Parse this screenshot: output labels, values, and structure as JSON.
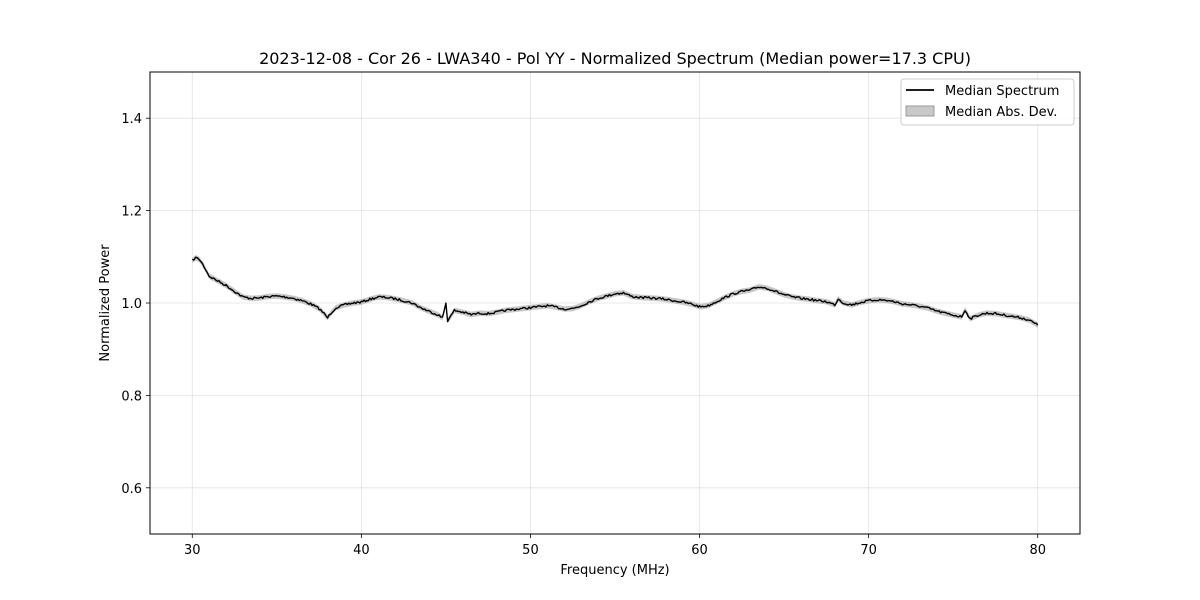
{
  "chart_data": {
    "type": "line",
    "title": "2023-12-08 - Cor 26 - LWA340 - Pol YY - Normalized Spectrum (Median power=17.3 CPU)",
    "xlabel": "Frequency (MHz)",
    "ylabel": "Normalized Power",
    "xlim": [
      27.5,
      82.5
    ],
    "ylim": [
      0.5,
      1.5
    ],
    "xticks": [
      30,
      40,
      50,
      60,
      70,
      80
    ],
    "yticks": [
      0.6,
      0.8,
      1.0,
      1.2,
      1.4
    ],
    "xtick_labels": [
      "30",
      "40",
      "50",
      "60",
      "70",
      "80"
    ],
    "ytick_labels": [
      "0.6",
      "0.8",
      "1.0",
      "1.2",
      "1.4"
    ],
    "grid": true,
    "legend_position": "top-right",
    "legend": [
      {
        "label": "Median Spectrum",
        "kind": "line",
        "color": "#000000"
      },
      {
        "label": "Median Abs. Dev.",
        "kind": "band",
        "color": "#b0b0b0"
      }
    ],
    "series": [
      {
        "name": "Median Spectrum",
        "color": "#000000",
        "mad": 0.006,
        "x": [
          30.0,
          30.2,
          30.4,
          30.6,
          30.8,
          31.0,
          31.5,
          32.0,
          32.5,
          33.0,
          33.5,
          34.0,
          34.5,
          35.0,
          35.5,
          36.0,
          36.5,
          37.0,
          37.5,
          37.8,
          38.0,
          38.2,
          38.5,
          39.0,
          39.5,
          40.0,
          40.5,
          41.0,
          41.5,
          42.0,
          42.5,
          43.0,
          43.5,
          44.0,
          44.5,
          44.8,
          45.0,
          45.1,
          45.3,
          45.5,
          46.0,
          46.5,
          47.0,
          47.5,
          48.0,
          48.5,
          49.0,
          49.5,
          50.0,
          50.5,
          51.0,
          51.5,
          52.0,
          52.5,
          53.0,
          53.5,
          54.0,
          54.5,
          55.0,
          55.5,
          56.0,
          56.5,
          57.0,
          57.5,
          58.0,
          58.5,
          59.0,
          59.5,
          60.0,
          60.5,
          61.0,
          61.5,
          62.0,
          62.5,
          63.0,
          63.5,
          64.0,
          64.5,
          65.0,
          65.5,
          66.0,
          66.5,
          67.0,
          67.5,
          68.0,
          68.2,
          68.5,
          69.0,
          69.5,
          70.0,
          70.5,
          71.0,
          71.5,
          72.0,
          72.5,
          73.0,
          73.5,
          74.0,
          74.5,
          75.0,
          75.5,
          75.7,
          76.0,
          76.5,
          77.0,
          77.5,
          78.0,
          78.5,
          79.0,
          79.5,
          80.0
        ],
        "y": [
          1.092,
          1.098,
          1.095,
          1.085,
          1.072,
          1.058,
          1.048,
          1.038,
          1.025,
          1.013,
          1.01,
          1.011,
          1.014,
          1.015,
          1.013,
          1.01,
          1.005,
          0.998,
          0.988,
          0.977,
          0.968,
          0.978,
          0.99,
          0.996,
          1.0,
          1.002,
          1.008,
          1.013,
          1.012,
          1.009,
          1.005,
          1.0,
          0.99,
          0.982,
          0.975,
          0.968,
          1.0,
          0.962,
          0.972,
          0.984,
          0.98,
          0.975,
          0.978,
          0.977,
          0.98,
          0.984,
          0.986,
          0.988,
          0.99,
          0.992,
          0.994,
          0.991,
          0.987,
          0.988,
          0.994,
          1.003,
          1.01,
          1.015,
          1.02,
          1.022,
          1.014,
          1.012,
          1.011,
          1.01,
          1.008,
          1.005,
          1.002,
          0.998,
          0.992,
          0.994,
          1.003,
          1.012,
          1.02,
          1.025,
          1.028,
          1.035,
          1.032,
          1.025,
          1.018,
          1.013,
          1.01,
          1.008,
          1.005,
          1.003,
          0.996,
          1.009,
          1.0,
          0.996,
          1.001,
          1.005,
          1.007,
          1.006,
          1.003,
          0.998,
          0.996,
          0.993,
          0.989,
          0.983,
          0.978,
          0.974,
          0.97,
          0.985,
          0.966,
          0.974,
          0.978,
          0.977,
          0.974,
          0.971,
          0.968,
          0.963,
          0.952
        ]
      }
    ]
  }
}
